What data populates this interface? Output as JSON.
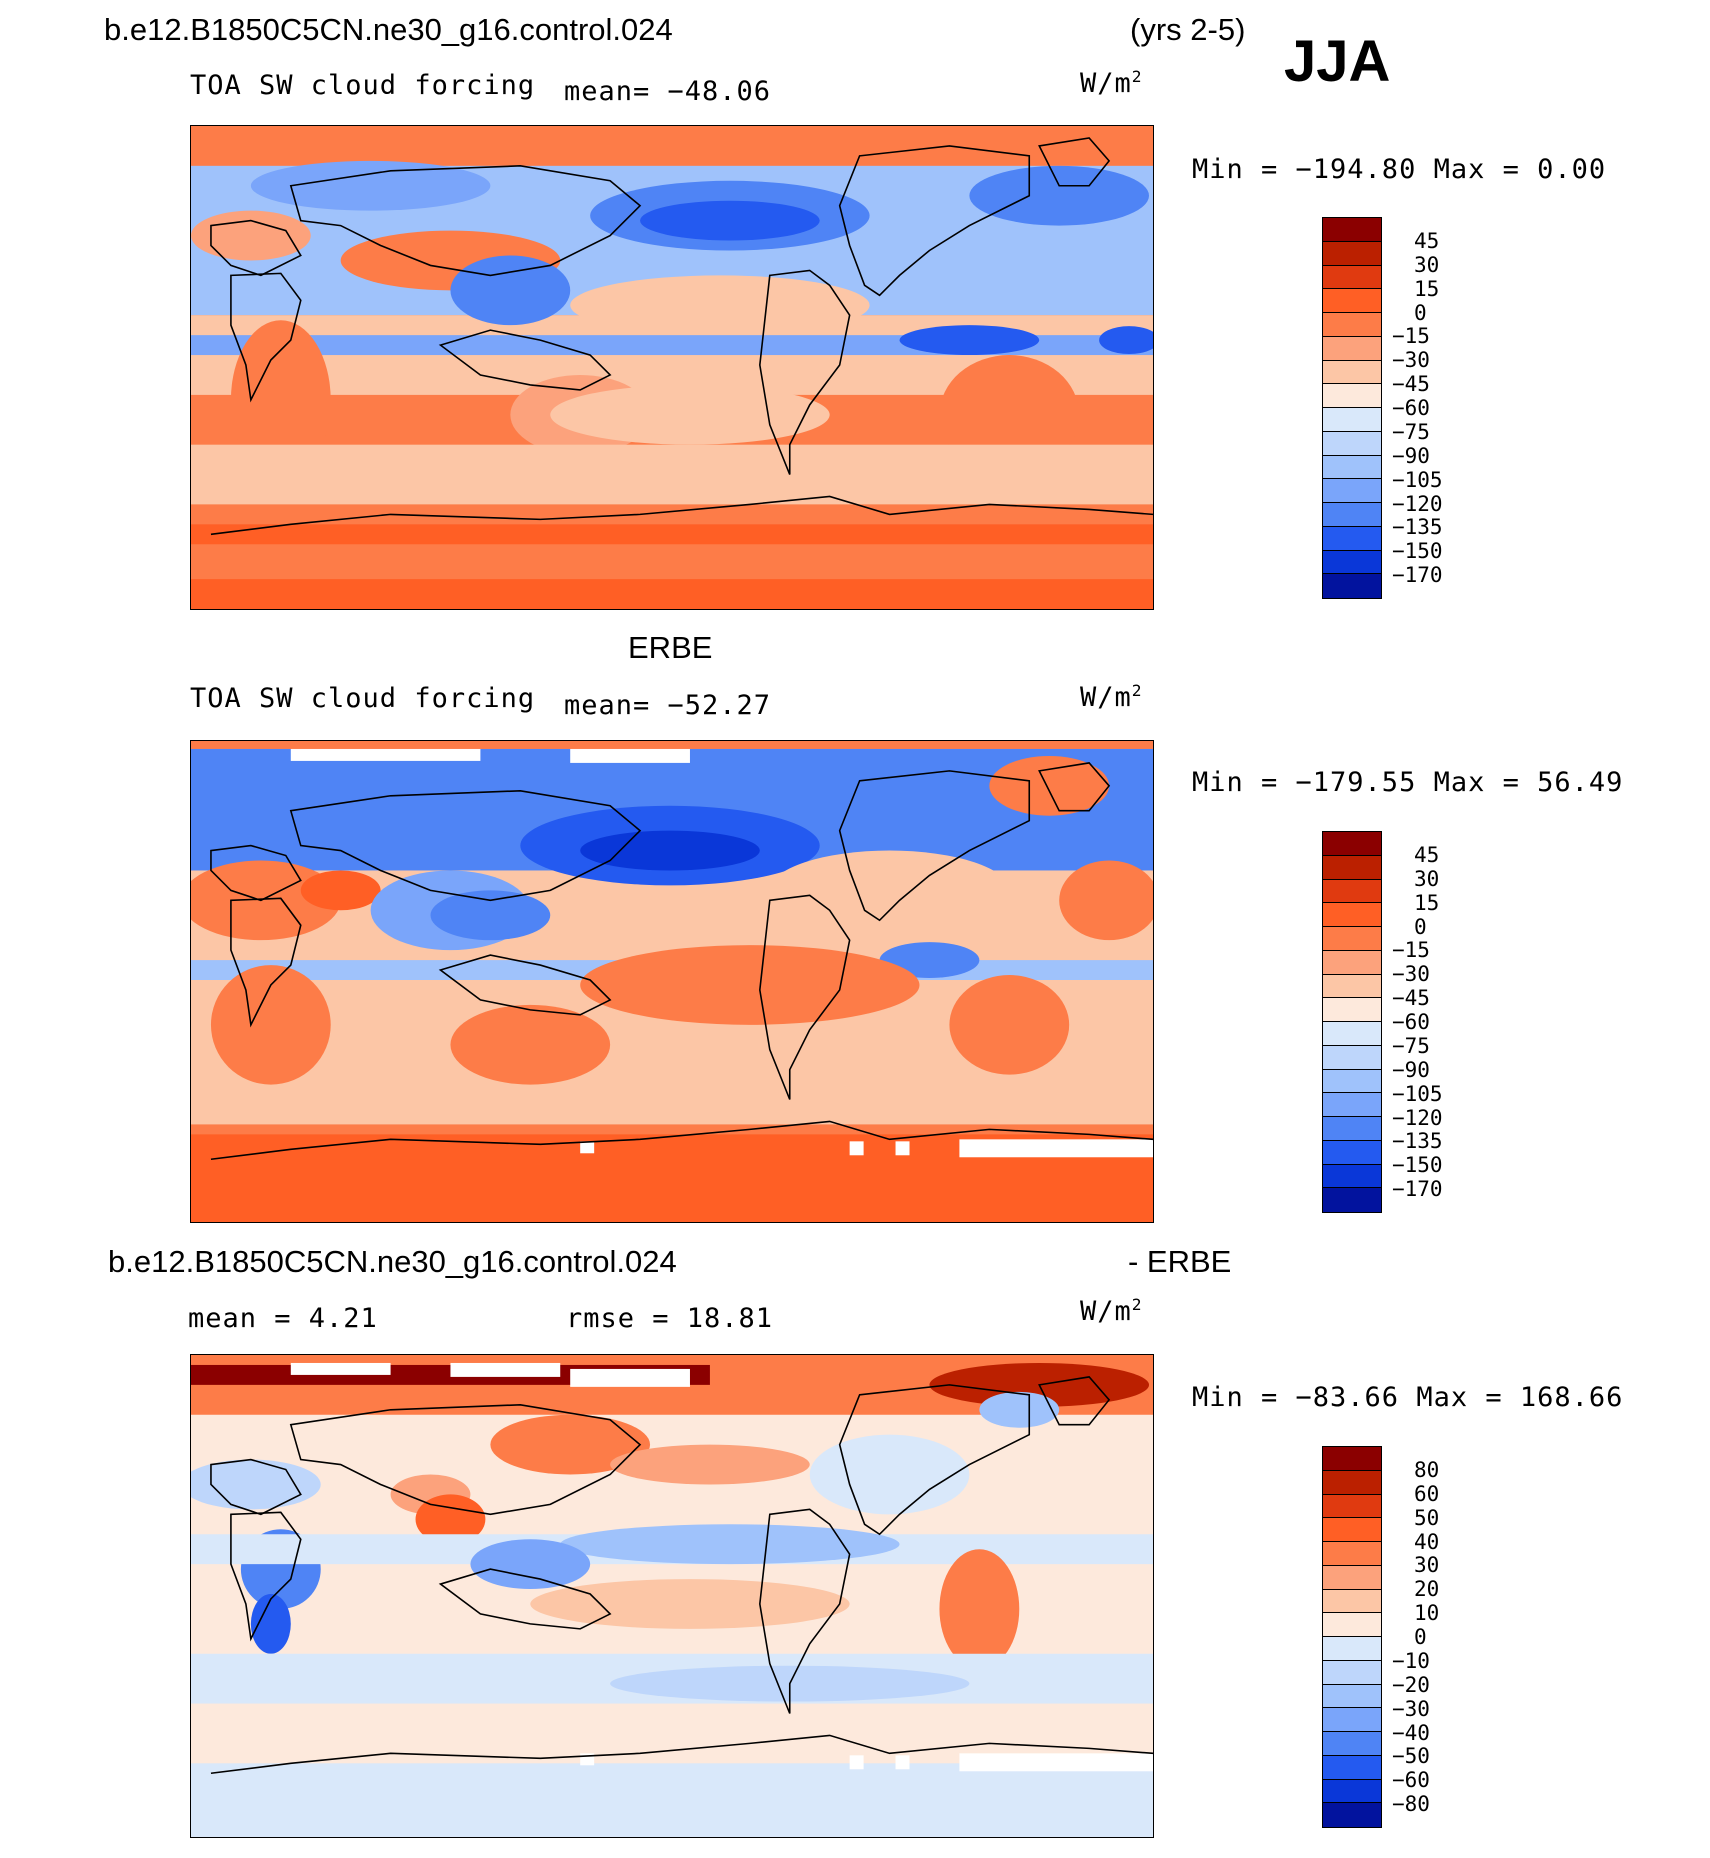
{
  "season": "JJA",
  "years": "(yrs 2-5)",
  "case_name": "b.e12.B1850C5CN.ne30_g16.control.024",
  "obs_name": "ERBE",
  "diff_suffix": "- ERBE",
  "units": "W/m",
  "units_sup": "2",
  "colors": {
    "abs": [
      "#8b0000",
      "#bb2000",
      "#e03a10",
      "#ff5f25",
      "#fd7c48",
      "#fca27c",
      "#fcc6a6",
      "#fde9dc",
      "#d9e8fa",
      "#bed6fb",
      "#9fc2fb",
      "#7aa5fa",
      "#4f84f5",
      "#245af0",
      "#0a37d8",
      "#02139e"
    ],
    "diff": [
      "#8b0000",
      "#bb2000",
      "#e03a10",
      "#ff5f25",
      "#fd7c48",
      "#fca27c",
      "#fcc6a6",
      "#fde9dc",
      "#d9e8fa",
      "#bed6fb",
      "#9fc2fb",
      "#7aa5fa",
      "#4f84f5",
      "#245af0",
      "#0a37d8",
      "#02139e"
    ]
  },
  "panels": [
    {
      "id": "model",
      "field": "TOA SW cloud forcing",
      "mean": "mean= −48.06",
      "minmax": "Min = −194.80 Max =   0.00",
      "levels": [
        "45",
        "30",
        "15",
        "0",
        "−15",
        "−30",
        "−45",
        "−60",
        "−75",
        "−90",
        "−105",
        "−120",
        "−135",
        "−150",
        "−170"
      ]
    },
    {
      "id": "obs",
      "field": "TOA SW cloud forcing",
      "mean": "mean= −52.27",
      "minmax": "Min = −179.55 Max =  56.49",
      "levels": [
        "45",
        "30",
        "15",
        "0",
        "−15",
        "−30",
        "−45",
        "−60",
        "−75",
        "−90",
        "−105",
        "−120",
        "−135",
        "−150",
        "−170"
      ]
    },
    {
      "id": "diff",
      "mean": "mean =    4.21",
      "rmse": "rmse =   18.81",
      "minmax": "Min = −83.66 Max = 168.66",
      "levels": [
        "80",
        "60",
        "50",
        "40",
        "30",
        "20",
        "10",
        "0",
        "−10",
        "−20",
        "−30",
        "−40",
        "−50",
        "−60",
        "−80"
      ]
    }
  ]
}
